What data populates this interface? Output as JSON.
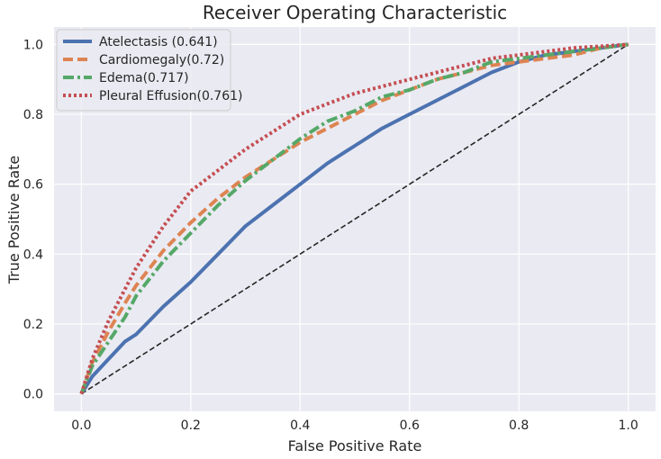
{
  "chart_data": {
    "type": "line",
    "title": "Receiver Operating Characteristic",
    "xlabel": "False Positive Rate",
    "ylabel": "True Positive Rate",
    "xlim": [
      -0.05,
      1.05
    ],
    "ylim": [
      -0.05,
      1.05
    ],
    "xticks": [
      "0.0",
      "0.2",
      "0.4",
      "0.6",
      "0.8",
      "1.0"
    ],
    "yticks": [
      "0.0",
      "0.2",
      "0.4",
      "0.6",
      "0.8",
      "1.0"
    ],
    "grid": true,
    "legend_position": "upper-left",
    "series": [
      {
        "name": "Atelectasis (0.641)",
        "color": "#4c72b0",
        "dash": "solid",
        "x": [
          0,
          0.02,
          0.05,
          0.08,
          0.1,
          0.15,
          0.2,
          0.25,
          0.3,
          0.35,
          0.4,
          0.45,
          0.5,
          0.55,
          0.6,
          0.65,
          0.7,
          0.75,
          0.8,
          0.85,
          0.9,
          0.95,
          1.0
        ],
        "y": [
          0,
          0.05,
          0.1,
          0.15,
          0.17,
          0.25,
          0.32,
          0.4,
          0.48,
          0.54,
          0.6,
          0.66,
          0.71,
          0.76,
          0.8,
          0.84,
          0.88,
          0.92,
          0.95,
          0.97,
          0.98,
          0.99,
          1.0
        ]
      },
      {
        "name": "Cardiomegaly(0.72)",
        "color": "#dd8452",
        "dash": "dashed",
        "x": [
          0,
          0.02,
          0.05,
          0.08,
          0.1,
          0.15,
          0.2,
          0.25,
          0.3,
          0.35,
          0.4,
          0.45,
          0.5,
          0.55,
          0.6,
          0.65,
          0.7,
          0.75,
          0.8,
          0.85,
          0.9,
          0.95,
          1.0
        ],
        "y": [
          0,
          0.09,
          0.18,
          0.26,
          0.31,
          0.41,
          0.49,
          0.56,
          0.62,
          0.67,
          0.72,
          0.76,
          0.8,
          0.84,
          0.87,
          0.9,
          0.92,
          0.94,
          0.95,
          0.96,
          0.97,
          0.99,
          1.0
        ]
      },
      {
        "name": "Edema(0.717)",
        "color": "#55a868",
        "dash": "dashdot",
        "x": [
          0,
          0.02,
          0.05,
          0.08,
          0.1,
          0.15,
          0.2,
          0.25,
          0.3,
          0.35,
          0.4,
          0.45,
          0.5,
          0.55,
          0.6,
          0.65,
          0.7,
          0.75,
          0.8,
          0.85,
          0.9,
          0.95,
          1.0
        ],
        "y": [
          0,
          0.08,
          0.15,
          0.22,
          0.28,
          0.38,
          0.46,
          0.54,
          0.61,
          0.67,
          0.73,
          0.78,
          0.81,
          0.85,
          0.87,
          0.9,
          0.92,
          0.95,
          0.96,
          0.97,
          0.98,
          0.99,
          1.0
        ]
      },
      {
        "name": "Pleural Effusion(0.761)",
        "color": "#c44e52",
        "dash": "dotted",
        "x": [
          0,
          0.02,
          0.05,
          0.08,
          0.1,
          0.15,
          0.2,
          0.25,
          0.3,
          0.35,
          0.4,
          0.45,
          0.5,
          0.55,
          0.6,
          0.65,
          0.7,
          0.75,
          0.8,
          0.85,
          0.9,
          0.95,
          1.0
        ],
        "y": [
          0,
          0.1,
          0.21,
          0.3,
          0.36,
          0.48,
          0.58,
          0.64,
          0.7,
          0.75,
          0.8,
          0.83,
          0.86,
          0.88,
          0.9,
          0.92,
          0.94,
          0.96,
          0.97,
          0.98,
          0.99,
          0.995,
          1.0
        ]
      },
      {
        "name": "",
        "color": "#262626",
        "dash": "diagonal",
        "x": [
          0,
          1
        ],
        "y": [
          0,
          1
        ]
      }
    ]
  }
}
